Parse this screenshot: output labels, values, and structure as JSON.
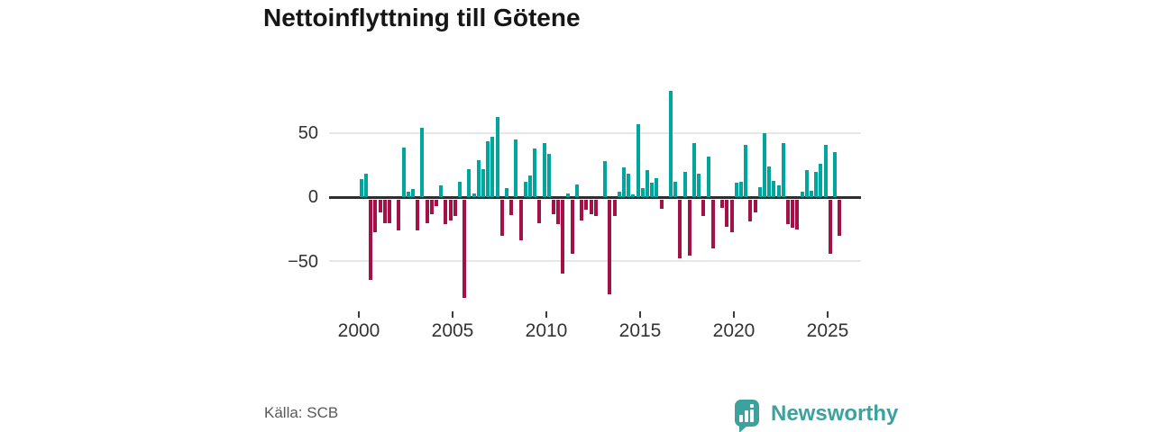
{
  "title": "Nettoinflyttning till Götene",
  "source": "Källa: SCB",
  "branding": {
    "logo_text": "Newsworthy",
    "logo_icon": "bar-chart-speech-bubble-icon",
    "brand_color": "#3da19d"
  },
  "colors": {
    "positive": "#00a69e",
    "negative": "#a31147",
    "grid": "#e7e7e7",
    "zero_line": "#2e2e2e",
    "axis_text": "#333333",
    "title_text": "#161616",
    "source_text": "#595959"
  },
  "chart_data": {
    "type": "bar",
    "title": "Nettoinflyttning till Götene",
    "ylabel": "",
    "xlabel": "",
    "period": "quarterly",
    "start_period": "2000 Q1",
    "end_period": "2025 Q3",
    "ylim": [
      -85,
      95
    ],
    "grid": "horizontal",
    "legend": "none",
    "positive_color": "#00a69e",
    "negative_color": "#a31147",
    "y_tick_labels": [
      "50",
      "0",
      "−50"
    ],
    "y_ticks": [
      50,
      0,
      -50
    ],
    "x_tick_labels": [
      "2000",
      "2005",
      "2010",
      "2015",
      "2020",
      "2025"
    ],
    "values": [
      14,
      18,
      -63,
      -25,
      -10,
      -18,
      -18,
      0,
      -24,
      39,
      4,
      6,
      -24,
      54,
      -18,
      -11,
      -5,
      9,
      -19,
      -16,
      -13,
      12,
      -77,
      22,
      3,
      29,
      22,
      44,
      47,
      63,
      -28,
      7,
      -12,
      45,
      -32,
      12,
      17,
      38,
      -18,
      42,
      34,
      -11,
      -19,
      -58,
      3,
      -42,
      10,
      -16,
      -8,
      -11,
      -13,
      0,
      28,
      -74,
      -13,
      4,
      23,
      18,
      2,
      57,
      7,
      21,
      11,
      15,
      -7,
      0,
      83,
      12,
      -46,
      20,
      -44,
      42,
      18,
      -13,
      32,
      -38,
      0,
      -6,
      -21,
      -25,
      11,
      12,
      41,
      -17,
      -10,
      8,
      50,
      24,
      13,
      9,
      42,
      -19,
      -22,
      -23,
      4,
      21,
      5,
      20,
      26,
      41,
      -42,
      35,
      -28
    ]
  }
}
